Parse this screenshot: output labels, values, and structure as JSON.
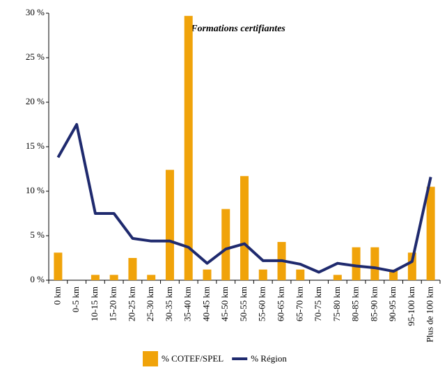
{
  "chart_data": {
    "type": "bar_line",
    "title": "Formations certifiantes",
    "categories": [
      "0 km",
      "0-5 km",
      "10-15 km",
      "15-20 km",
      "20-25 km",
      "25-30 km",
      "30-35 km",
      "35-40 km",
      "40-45 km",
      "45-50 km",
      "50-55 km",
      "55-60 km",
      "60-65 km",
      "65-70 km",
      "70-75 km",
      "75-80 km",
      "80-85 km",
      "85-90 km",
      "90-95 km",
      "95-100 km",
      "Plus de 100 km"
    ],
    "series": [
      {
        "name": "% COTEF/SPEL",
        "type": "bar",
        "color": "#f0a30a",
        "values": [
          3.1,
          0,
          0.6,
          0.6,
          2.5,
          0.6,
          12.4,
          29.7,
          1.2,
          8.0,
          11.7,
          1.2,
          4.3,
          1.2,
          0,
          0.6,
          3.7,
          3.7,
          1.2,
          3.1,
          10.5
        ]
      },
      {
        "name": "% Région",
        "type": "line",
        "color": "#1f2a6e",
        "values": [
          13.8,
          17.5,
          7.5,
          7.5,
          4.7,
          4.4,
          4.4,
          3.7,
          1.9,
          3.5,
          4.1,
          2.2,
          2.2,
          1.8,
          0.9,
          1.9,
          1.6,
          1.4,
          1.0,
          2.1,
          11.6
        ]
      }
    ],
    "ylim": [
      0,
      30
    ],
    "yticks": [
      {
        "value": 0,
        "label": "0 %"
      },
      {
        "value": 5,
        "label": "5 %"
      },
      {
        "value": 10,
        "label": "10 %"
      },
      {
        "value": 15,
        "label": "15 %"
      },
      {
        "value": 20,
        "label": "20 %"
      },
      {
        "value": 25,
        "label": "25 %"
      },
      {
        "value": 30,
        "label": "30 %"
      }
    ],
    "legend": "bottom"
  }
}
